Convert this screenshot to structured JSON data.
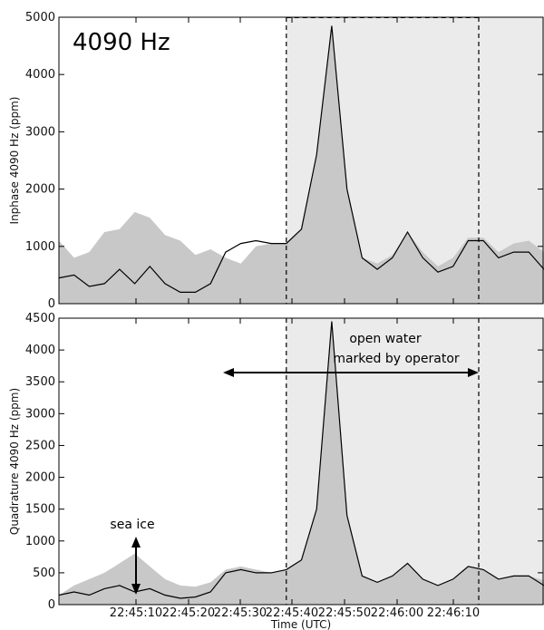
{
  "chart_data": [
    {
      "type": "area",
      "panel_label": "4090 Hz",
      "ylabel": "Inphase 4090 Hz (ppm)",
      "ylim": [
        0,
        5000
      ],
      "yticks": [
        0,
        1000,
        2000,
        3000,
        4000,
        5000
      ],
      "xlim_seconds_after_22_45_00": [
        1.5,
        17.5
      ],
      "shaded_region": [
        9.0,
        17.5
      ],
      "vertical_lines": [
        9.0,
        18.0
      ],
      "series": [
        {
          "role": "envelope (gray fill)",
          "x": [
            1.5,
            2.0,
            2.5,
            3.0,
            3.5,
            4.0,
            4.5,
            5.0,
            5.5,
            6.0,
            6.5,
            7.0,
            7.5,
            8.0,
            8.5,
            9.0,
            9.5,
            10.0,
            10.5,
            11.0,
            11.5,
            12.0,
            12.5,
            13.0,
            13.5,
            14.0,
            14.5,
            15.0,
            15.5,
            16.0,
            16.5,
            17.0,
            17.5
          ],
          "values": [
            1100,
            800,
            900,
            1250,
            1300,
            1600,
            1500,
            1200,
            1100,
            850,
            950,
            800,
            700,
            1000,
            1050,
            1050,
            1300,
            2600,
            4850,
            2000,
            800,
            700,
            850,
            1250,
            900,
            650,
            800,
            1150,
            1150,
            900,
            1050,
            1100,
            900
          ]
        },
        {
          "role": "signal (black line)",
          "x": [
            1.5,
            2.0,
            2.5,
            3.0,
            3.5,
            4.0,
            4.5,
            5.0,
            5.5,
            6.0,
            6.5,
            7.0,
            7.5,
            8.0,
            8.5,
            9.0,
            9.5,
            10.0,
            10.5,
            11.0,
            11.5,
            12.0,
            12.5,
            13.0,
            13.5,
            14.0,
            14.5,
            15.0,
            15.5,
            16.0,
            16.5,
            17.0,
            17.5
          ],
          "values": [
            450,
            500,
            300,
            350,
            600,
            350,
            650,
            350,
            200,
            200,
            350,
            900,
            1050,
            1100,
            1050,
            1050,
            1300,
            2600,
            4850,
            2000,
            800,
            600,
            800,
            1250,
            800,
            550,
            650,
            1100,
            1100,
            800,
            900,
            900,
            600
          ]
        }
      ]
    },
    {
      "type": "area",
      "ylabel": "Quadrature 4090 Hz (ppm)",
      "xlabel": "Time (UTC)",
      "ylim": [
        0,
        4500
      ],
      "yticks": [
        0,
        500,
        1000,
        1500,
        2000,
        2500,
        3000,
        3500,
        4000,
        4500
      ],
      "xtick_labels": [
        "22:45:10",
        "22:45:20",
        "22:45:30",
        "22:45:40",
        "22:45:50",
        "22:46:00",
        "22:46:10"
      ],
      "shaded_region": [
        9.0,
        17.5
      ],
      "vertical_lines": [
        9.0,
        18.0
      ],
      "annotations": [
        {
          "text": "open water",
          "x": 13.5,
          "y": 4100
        },
        {
          "text": "marked by operator",
          "x": 13.5,
          "y": 3800
        },
        {
          "text": "sea ice",
          "x": 4.0,
          "y": 1250
        }
      ],
      "series": [
        {
          "role": "envelope (gray fill)",
          "x": [
            1.5,
            2.0,
            2.5,
            3.0,
            3.5,
            4.0,
            4.5,
            5.0,
            5.5,
            6.0,
            6.5,
            7.0,
            7.5,
            8.0,
            8.5,
            9.0,
            9.5,
            10.0,
            10.5,
            11.0,
            11.5,
            12.0,
            12.5,
            13.0,
            13.5,
            14.0,
            14.5,
            15.0,
            15.5,
            16.0,
            16.5,
            17.0,
            17.5
          ],
          "values": [
            150,
            300,
            400,
            500,
            650,
            800,
            600,
            400,
            300,
            280,
            350,
            550,
            600,
            550,
            500,
            550,
            700,
            1500,
            4450,
            1400,
            450,
            350,
            450,
            650,
            400,
            300,
            400,
            600,
            550,
            400,
            450,
            450,
            380
          ]
        },
        {
          "role": "signal (black line)",
          "x": [
            1.5,
            2.0,
            2.5,
            3.0,
            3.5,
            4.0,
            4.5,
            5.0,
            5.5,
            6.0,
            6.5,
            7.0,
            7.5,
            8.0,
            8.5,
            9.0,
            9.5,
            10.0,
            10.5,
            11.0,
            11.5,
            12.0,
            12.5,
            13.0,
            13.5,
            14.0,
            14.5,
            15.0,
            15.5,
            16.0,
            16.5,
            17.0,
            17.5
          ],
          "values": [
            150,
            200,
            150,
            250,
            300,
            200,
            250,
            150,
            100,
            120,
            200,
            500,
            550,
            500,
            500,
            550,
            700,
            1500,
            4450,
            1400,
            450,
            350,
            450,
            650,
            400,
            300,
            400,
            600,
            550,
            400,
            450,
            450,
            300
          ]
        }
      ]
    }
  ]
}
